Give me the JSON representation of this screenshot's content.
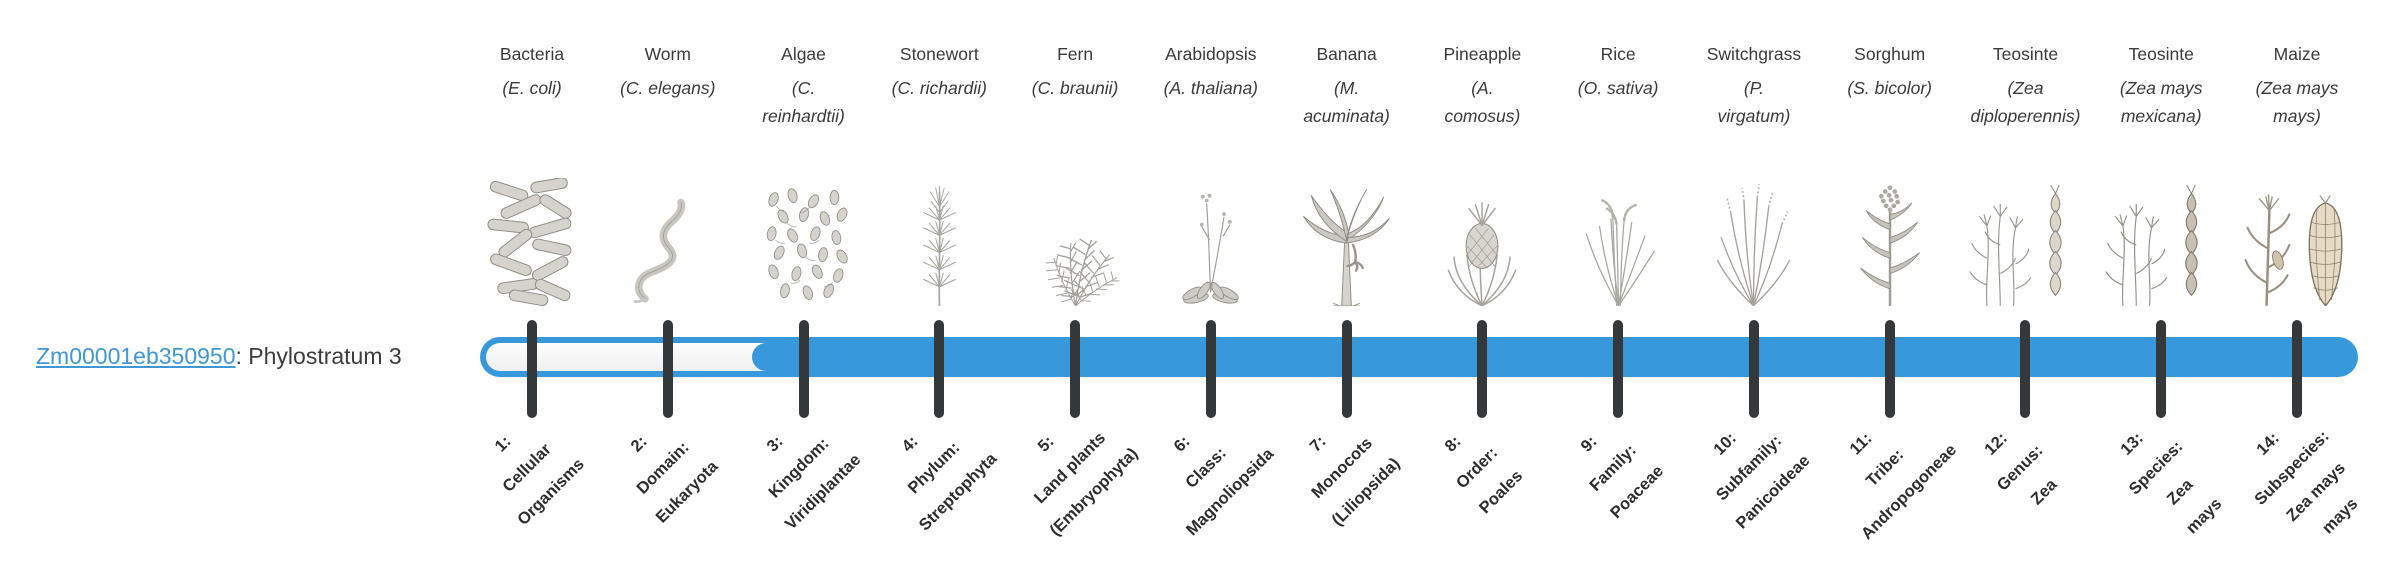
{
  "gene": {
    "id": "Zm00001eb350950",
    "suffix": ": Phylostratum 3"
  },
  "colors": {
    "bar_blue": "#3798dc",
    "tick_dark": "#35383b",
    "link_blue": "#3f97d4",
    "text_dark": "#3a3a3a"
  },
  "timeline": {
    "filled_from_stratum": 3,
    "total_strata": 14,
    "strata": [
      {
        "number": 1,
        "organism": "Bacteria",
        "species_lines": [
          "(E. coli)"
        ],
        "icon": "bacteria-icon",
        "tick_label_lines": [
          "1:",
          "Cellular",
          "Organisms"
        ]
      },
      {
        "number": 2,
        "organism": "Worm",
        "species_lines": [
          "(C. elegans)"
        ],
        "icon": "worm-icon",
        "tick_label_lines": [
          "2:",
          "Domain:",
          "Eukaryota"
        ]
      },
      {
        "number": 3,
        "organism": "Algae",
        "species_lines": [
          "(C.",
          "reinhardtii)"
        ],
        "icon": "algae-icon",
        "tick_label_lines": [
          "3:",
          "Kingdom:",
          "Viridiplantae"
        ]
      },
      {
        "number": 4,
        "organism": "Stonewort",
        "species_lines": [
          "(C. richardii)"
        ],
        "icon": "stonewort-icon",
        "tick_label_lines": [
          "4:",
          "Phylum:",
          "Streptophyta"
        ]
      },
      {
        "number": 5,
        "organism": "Fern",
        "species_lines": [
          "(C. braunii)"
        ],
        "icon": "fern-icon",
        "tick_label_lines": [
          "5:",
          "Land plants",
          "(Embryophyta)"
        ]
      },
      {
        "number": 6,
        "organism": "Arabidopsis",
        "species_lines": [
          "(A. thaliana)"
        ],
        "icon": "arabidopsis-icon",
        "tick_label_lines": [
          "6:",
          "Class:",
          "Magnoliopsida"
        ]
      },
      {
        "number": 7,
        "organism": "Banana",
        "species_lines": [
          "(M.",
          "acuminata)"
        ],
        "icon": "banana-icon",
        "tick_label_lines": [
          "7:",
          "Monocots",
          "(Liliopsida)"
        ]
      },
      {
        "number": 8,
        "organism": "Pineapple",
        "species_lines": [
          "(A.",
          "comosus)"
        ],
        "icon": "pineapple-icon",
        "tick_label_lines": [
          "8:",
          "Order:",
          "Poales"
        ]
      },
      {
        "number": 9,
        "organism": "Rice",
        "species_lines": [
          "(O. sativa)"
        ],
        "icon": "rice-icon",
        "tick_label_lines": [
          "9:",
          "Family:",
          "Poaceae"
        ]
      },
      {
        "number": 10,
        "organism": "Switchgrass",
        "species_lines": [
          "(P.",
          "virgatum)"
        ],
        "icon": "switchgrass-icon",
        "tick_label_lines": [
          "10:",
          "Subfamily:",
          "Panicoideae"
        ]
      },
      {
        "number": 11,
        "organism": "Sorghum",
        "species_lines": [
          "(S. bicolor)"
        ],
        "icon": "sorghum-icon",
        "tick_label_lines": [
          "11:",
          "Tribe:",
          "Andropogoneae"
        ]
      },
      {
        "number": 12,
        "organism": "Teosinte",
        "species_lines": [
          "(Zea",
          "diploperennis)"
        ],
        "icon": "teosinte-diploperennis-icon",
        "tick_label_lines": [
          "12:",
          "Genus:",
          "Zea"
        ]
      },
      {
        "number": 13,
        "organism": "Teosinte",
        "species_lines": [
          "(Zea mays",
          "mexicana)"
        ],
        "icon": "teosinte-mexicana-icon",
        "tick_label_lines": [
          "13:",
          "Species:",
          "Zea",
          "mays"
        ]
      },
      {
        "number": 14,
        "organism": "Maize",
        "species_lines": [
          "(Zea mays",
          "mays)"
        ],
        "icon": "maize-icon",
        "tick_label_lines": [
          "14:",
          "Subspecies:",
          "Zea mays",
          "mays"
        ]
      }
    ]
  }
}
